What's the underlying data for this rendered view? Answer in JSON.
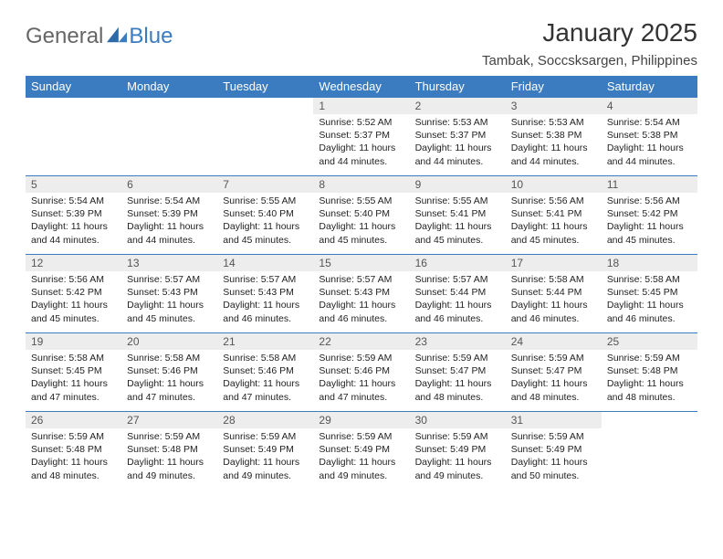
{
  "brand": {
    "part1": "General",
    "part2": "Blue"
  },
  "title": "January 2025",
  "location": "Tambak, Soccsksargen, Philippines",
  "colors": {
    "header_bg": "#3b7bbf",
    "header_fg": "#ffffff",
    "daynum_bg": "#ededed",
    "daynum_fg": "#555555",
    "body_fg": "#222222",
    "page_bg": "#ffffff",
    "border": "#3b7bbf"
  },
  "weekdays": [
    "Sunday",
    "Monday",
    "Tuesday",
    "Wednesday",
    "Thursday",
    "Friday",
    "Saturday"
  ],
  "first_weekday_index": 3,
  "days": [
    {
      "n": 1,
      "sunrise": "5:52 AM",
      "sunset": "5:37 PM",
      "day_h": 11,
      "day_m": 44
    },
    {
      "n": 2,
      "sunrise": "5:53 AM",
      "sunset": "5:37 PM",
      "day_h": 11,
      "day_m": 44
    },
    {
      "n": 3,
      "sunrise": "5:53 AM",
      "sunset": "5:38 PM",
      "day_h": 11,
      "day_m": 44
    },
    {
      "n": 4,
      "sunrise": "5:54 AM",
      "sunset": "5:38 PM",
      "day_h": 11,
      "day_m": 44
    },
    {
      "n": 5,
      "sunrise": "5:54 AM",
      "sunset": "5:39 PM",
      "day_h": 11,
      "day_m": 44
    },
    {
      "n": 6,
      "sunrise": "5:54 AM",
      "sunset": "5:39 PM",
      "day_h": 11,
      "day_m": 44
    },
    {
      "n": 7,
      "sunrise": "5:55 AM",
      "sunset": "5:40 PM",
      "day_h": 11,
      "day_m": 45
    },
    {
      "n": 8,
      "sunrise": "5:55 AM",
      "sunset": "5:40 PM",
      "day_h": 11,
      "day_m": 45
    },
    {
      "n": 9,
      "sunrise": "5:55 AM",
      "sunset": "5:41 PM",
      "day_h": 11,
      "day_m": 45
    },
    {
      "n": 10,
      "sunrise": "5:56 AM",
      "sunset": "5:41 PM",
      "day_h": 11,
      "day_m": 45
    },
    {
      "n": 11,
      "sunrise": "5:56 AM",
      "sunset": "5:42 PM",
      "day_h": 11,
      "day_m": 45
    },
    {
      "n": 12,
      "sunrise": "5:56 AM",
      "sunset": "5:42 PM",
      "day_h": 11,
      "day_m": 45
    },
    {
      "n": 13,
      "sunrise": "5:57 AM",
      "sunset": "5:43 PM",
      "day_h": 11,
      "day_m": 45
    },
    {
      "n": 14,
      "sunrise": "5:57 AM",
      "sunset": "5:43 PM",
      "day_h": 11,
      "day_m": 46
    },
    {
      "n": 15,
      "sunrise": "5:57 AM",
      "sunset": "5:43 PM",
      "day_h": 11,
      "day_m": 46
    },
    {
      "n": 16,
      "sunrise": "5:57 AM",
      "sunset": "5:44 PM",
      "day_h": 11,
      "day_m": 46
    },
    {
      "n": 17,
      "sunrise": "5:58 AM",
      "sunset": "5:44 PM",
      "day_h": 11,
      "day_m": 46
    },
    {
      "n": 18,
      "sunrise": "5:58 AM",
      "sunset": "5:45 PM",
      "day_h": 11,
      "day_m": 46
    },
    {
      "n": 19,
      "sunrise": "5:58 AM",
      "sunset": "5:45 PM",
      "day_h": 11,
      "day_m": 47
    },
    {
      "n": 20,
      "sunrise": "5:58 AM",
      "sunset": "5:46 PM",
      "day_h": 11,
      "day_m": 47
    },
    {
      "n": 21,
      "sunrise": "5:58 AM",
      "sunset": "5:46 PM",
      "day_h": 11,
      "day_m": 47
    },
    {
      "n": 22,
      "sunrise": "5:59 AM",
      "sunset": "5:46 PM",
      "day_h": 11,
      "day_m": 47
    },
    {
      "n": 23,
      "sunrise": "5:59 AM",
      "sunset": "5:47 PM",
      "day_h": 11,
      "day_m": 48
    },
    {
      "n": 24,
      "sunrise": "5:59 AM",
      "sunset": "5:47 PM",
      "day_h": 11,
      "day_m": 48
    },
    {
      "n": 25,
      "sunrise": "5:59 AM",
      "sunset": "5:48 PM",
      "day_h": 11,
      "day_m": 48
    },
    {
      "n": 26,
      "sunrise": "5:59 AM",
      "sunset": "5:48 PM",
      "day_h": 11,
      "day_m": 48
    },
    {
      "n": 27,
      "sunrise": "5:59 AM",
      "sunset": "5:48 PM",
      "day_h": 11,
      "day_m": 49
    },
    {
      "n": 28,
      "sunrise": "5:59 AM",
      "sunset": "5:49 PM",
      "day_h": 11,
      "day_m": 49
    },
    {
      "n": 29,
      "sunrise": "5:59 AM",
      "sunset": "5:49 PM",
      "day_h": 11,
      "day_m": 49
    },
    {
      "n": 30,
      "sunrise": "5:59 AM",
      "sunset": "5:49 PM",
      "day_h": 11,
      "day_m": 49
    },
    {
      "n": 31,
      "sunrise": "5:59 AM",
      "sunset": "5:49 PM",
      "day_h": 11,
      "day_m": 50
    }
  ],
  "labels": {
    "sunrise": "Sunrise:",
    "sunset": "Sunset:",
    "daylight": "Daylight:",
    "hours": "hours",
    "and": "and",
    "minutes": "minutes."
  }
}
